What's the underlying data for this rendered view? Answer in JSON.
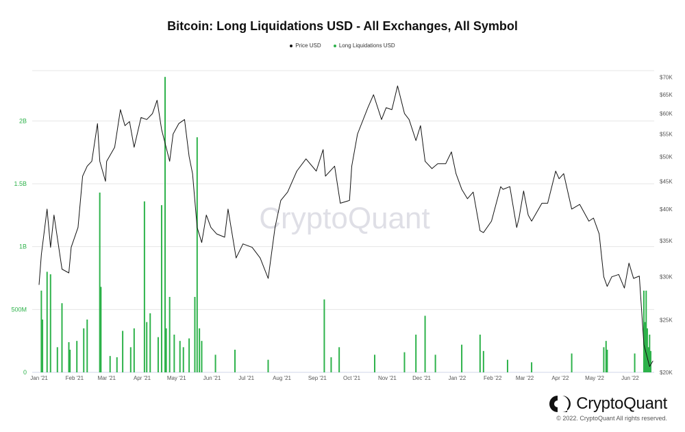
{
  "title": "Bitcoin: Long Liquidations USD - All Exchanges, All Symbol",
  "legend": [
    {
      "label": "Price USD",
      "color": "#111111"
    },
    {
      "label": "Long Liquidations USD",
      "color": "#2db24a"
    }
  ],
  "watermark": "CryptoQuant",
  "brand": {
    "name": "CryptoQuant",
    "icon": "cryptoquant-logo-icon"
  },
  "copyright": "© 2022. CryptoQuant All rights reserved.",
  "chart_data": {
    "type": "bar+line",
    "x_ticks": [
      "Jan '21",
      "Feb '21",
      "Mar '21",
      "Apr '21",
      "May '21",
      "Jun '21",
      "Jul '21",
      "Aug '21",
      "Sep '21",
      "Oct '21",
      "Nov '21",
      "Dec '21",
      "Jan '22",
      "Feb '22",
      "Mar '22",
      "Apr '22",
      "May '22",
      "Jun '22"
    ],
    "y_left": {
      "label": "Long Liquidations USD",
      "ticks": [
        "0",
        "500M",
        "1B",
        "1.5B",
        "2B"
      ],
      "tick_values": [
        0,
        500000000,
        1000000000,
        1500000000,
        2000000000
      ],
      "range": [
        0,
        2400000000
      ],
      "color": "#2db24a"
    },
    "y_right": {
      "label": "Price USD",
      "ticks": [
        "$20K",
        "$25K",
        "$30K",
        "$35K",
        "$40K",
        "$45K",
        "$50K",
        "$55K",
        "$60K",
        "$65K",
        "$70K"
      ],
      "tick_values": [
        20000,
        25000,
        30000,
        35000,
        40000,
        45000,
        50000,
        55000,
        60000,
        65000,
        70000
      ],
      "scale": "log",
      "range": [
        20000,
        72000
      ]
    },
    "grid": true,
    "series": [
      {
        "name": "Price USD",
        "color": "#111111",
        "type": "line",
        "points": [
          [
            "2021-01-01",
            29000
          ],
          [
            "2021-01-03",
            33000
          ],
          [
            "2021-01-08",
            40000
          ],
          [
            "2021-01-11",
            34000
          ],
          [
            "2021-01-14",
            39000
          ],
          [
            "2021-01-21",
            31000
          ],
          [
            "2021-01-27",
            30500
          ],
          [
            "2021-01-29",
            34000
          ],
          [
            "2021-02-04",
            37000
          ],
          [
            "2021-02-08",
            46000
          ],
          [
            "2021-02-12",
            48000
          ],
          [
            "2021-02-16",
            49000
          ],
          [
            "2021-02-21",
            57500
          ],
          [
            "2021-02-23",
            49000
          ],
          [
            "2021-02-28",
            45000
          ],
          [
            "2021-03-01",
            49000
          ],
          [
            "2021-03-08",
            52000
          ],
          [
            "2021-03-13",
            61000
          ],
          [
            "2021-03-17",
            57000
          ],
          [
            "2021-03-21",
            58000
          ],
          [
            "2021-03-25",
            52000
          ],
          [
            "2021-03-31",
            59000
          ],
          [
            "2021-04-05",
            58500
          ],
          [
            "2021-04-10",
            60000
          ],
          [
            "2021-04-14",
            63500
          ],
          [
            "2021-04-18",
            56000
          ],
          [
            "2021-04-25",
            49000
          ],
          [
            "2021-04-28",
            55000
          ],
          [
            "2021-05-03",
            57500
          ],
          [
            "2021-05-08",
            58500
          ],
          [
            "2021-05-12",
            50000
          ],
          [
            "2021-05-15",
            46500
          ],
          [
            "2021-05-19",
            37000
          ],
          [
            "2021-05-23",
            34700
          ],
          [
            "2021-05-27",
            39000
          ],
          [
            "2021-05-31",
            37000
          ],
          [
            "2021-06-05",
            36000
          ],
          [
            "2021-06-12",
            35500
          ],
          [
            "2021-06-15",
            40000
          ],
          [
            "2021-06-22",
            32500
          ],
          [
            "2021-06-28",
            34500
          ],
          [
            "2021-07-06",
            34000
          ],
          [
            "2021-07-13",
            32500
          ],
          [
            "2021-07-20",
            29800
          ],
          [
            "2021-07-26",
            37000
          ],
          [
            "2021-07-31",
            41500
          ],
          [
            "2021-08-06",
            43000
          ],
          [
            "2021-08-14",
            47000
          ],
          [
            "2021-08-22",
            49500
          ],
          [
            "2021-08-31",
            47000
          ],
          [
            "2021-09-06",
            51500
          ],
          [
            "2021-09-08",
            46000
          ],
          [
            "2021-09-16",
            48000
          ],
          [
            "2021-09-21",
            41000
          ],
          [
            "2021-09-29",
            41500
          ],
          [
            "2021-10-01",
            48000
          ],
          [
            "2021-10-06",
            55000
          ],
          [
            "2021-10-15",
            61500
          ],
          [
            "2021-10-20",
            65000
          ],
          [
            "2021-10-27",
            58500
          ],
          [
            "2021-10-31",
            61500
          ],
          [
            "2021-11-05",
            61000
          ],
          [
            "2021-11-10",
            67500
          ],
          [
            "2021-11-16",
            60000
          ],
          [
            "2021-11-20",
            58500
          ],
          [
            "2021-11-26",
            53500
          ],
          [
            "2021-11-30",
            57000
          ],
          [
            "2021-12-04",
            49000
          ],
          [
            "2021-12-10",
            47500
          ],
          [
            "2021-12-15",
            48500
          ],
          [
            "2021-12-22",
            48500
          ],
          [
            "2021-12-27",
            51000
          ],
          [
            "2021-12-31",
            46500
          ],
          [
            "2022-01-05",
            43500
          ],
          [
            "2022-01-10",
            41800
          ],
          [
            "2022-01-15",
            43000
          ],
          [
            "2022-01-21",
            36500
          ],
          [
            "2022-01-24",
            36200
          ],
          [
            "2022-01-31",
            38000
          ],
          [
            "2022-02-08",
            44000
          ],
          [
            "2022-02-10",
            43500
          ],
          [
            "2022-02-16",
            44000
          ],
          [
            "2022-02-22",
            37000
          ],
          [
            "2022-02-24",
            38500
          ],
          [
            "2022-02-28",
            43200
          ],
          [
            "2022-03-04",
            39000
          ],
          [
            "2022-03-07",
            38000
          ],
          [
            "2022-03-16",
            41000
          ],
          [
            "2022-03-21",
            41000
          ],
          [
            "2022-03-28",
            47000
          ],
          [
            "2022-03-31",
            45500
          ],
          [
            "2022-04-04",
            46500
          ],
          [
            "2022-04-11",
            40000
          ],
          [
            "2022-04-18",
            40800
          ],
          [
            "2022-04-26",
            38000
          ],
          [
            "2022-04-30",
            38500
          ],
          [
            "2022-05-05",
            36000
          ],
          [
            "2022-05-09",
            30000
          ],
          [
            "2022-05-12",
            28800
          ],
          [
            "2022-05-16",
            30000
          ],
          [
            "2022-05-22",
            30300
          ],
          [
            "2022-05-27",
            28600
          ],
          [
            "2022-05-31",
            31800
          ],
          [
            "2022-06-04",
            29800
          ],
          [
            "2022-06-09",
            30100
          ],
          [
            "2022-06-13",
            22500
          ],
          [
            "2022-06-18",
            20500
          ],
          [
            "2022-06-21",
            21000
          ]
        ]
      },
      {
        "name": "Long Liquidations USD",
        "color": "#2db24a",
        "type": "bar",
        "points": [
          [
            "2021-01-03",
            650000000
          ],
          [
            "2021-01-04",
            420000000
          ],
          [
            "2021-01-08",
            800000000
          ],
          [
            "2021-01-11",
            780000000
          ],
          [
            "2021-01-17",
            200000000
          ],
          [
            "2021-01-21",
            550000000
          ],
          [
            "2021-01-27",
            240000000
          ],
          [
            "2021-01-28",
            180000000
          ],
          [
            "2021-02-03",
            250000000
          ],
          [
            "2021-02-09",
            350000000
          ],
          [
            "2021-02-12",
            420000000
          ],
          [
            "2021-02-23",
            1430000000
          ],
          [
            "2021-02-24",
            680000000
          ],
          [
            "2021-03-04",
            130000000
          ],
          [
            "2021-03-10",
            120000000
          ],
          [
            "2021-03-15",
            330000000
          ],
          [
            "2021-03-22",
            200000000
          ],
          [
            "2021-03-25",
            350000000
          ],
          [
            "2021-04-03",
            1360000000
          ],
          [
            "2021-04-05",
            400000000
          ],
          [
            "2021-04-08",
            470000000
          ],
          [
            "2021-04-15",
            280000000
          ],
          [
            "2021-04-18",
            1330000000
          ],
          [
            "2021-04-21",
            2350000000
          ],
          [
            "2021-04-22",
            350000000
          ],
          [
            "2021-04-25",
            600000000
          ],
          [
            "2021-04-29",
            300000000
          ],
          [
            "2021-05-04",
            250000000
          ],
          [
            "2021-05-07",
            200000000
          ],
          [
            "2021-05-12",
            270000000
          ],
          [
            "2021-05-17",
            600000000
          ],
          [
            "2021-05-19",
            1870000000
          ],
          [
            "2021-05-21",
            350000000
          ],
          [
            "2021-05-23",
            250000000
          ],
          [
            "2021-06-04",
            140000000
          ],
          [
            "2021-06-21",
            180000000
          ],
          [
            "2021-07-20",
            100000000
          ],
          [
            "2021-09-07",
            580000000
          ],
          [
            "2021-09-13",
            120000000
          ],
          [
            "2021-09-20",
            200000000
          ],
          [
            "2021-10-21",
            140000000
          ],
          [
            "2021-11-16",
            160000000
          ],
          [
            "2021-11-26",
            300000000
          ],
          [
            "2021-12-04",
            450000000
          ],
          [
            "2021-12-13",
            140000000
          ],
          [
            "2022-01-05",
            220000000
          ],
          [
            "2022-01-21",
            300000000
          ],
          [
            "2022-01-24",
            170000000
          ],
          [
            "2022-02-14",
            100000000
          ],
          [
            "2022-03-07",
            80000000
          ],
          [
            "2022-04-11",
            150000000
          ],
          [
            "2022-05-09",
            200000000
          ],
          [
            "2022-05-11",
            250000000
          ],
          [
            "2022-05-12",
            180000000
          ],
          [
            "2022-06-05",
            150000000
          ],
          [
            "2022-06-13",
            650000000
          ],
          [
            "2022-06-14",
            400000000
          ],
          [
            "2022-06-15",
            650000000
          ],
          [
            "2022-06-16",
            350000000
          ],
          [
            "2022-06-17",
            200000000
          ],
          [
            "2022-06-18",
            300000000
          ],
          [
            "2022-06-19",
            170000000
          ]
        ]
      }
    ]
  }
}
